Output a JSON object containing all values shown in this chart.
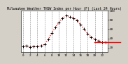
{
  "title": "Milwaukee Weather THSW Index per Hour (F) (Last 24 Hours)",
  "background_color": "#d4d0c8",
  "plot_bg_color": "#ffffff",
  "grid_color": "#888888",
  "line_color": "#ff0000",
  "marker_color": "#000000",
  "x_values": [
    0,
    1,
    2,
    3,
    4,
    5,
    6,
    7,
    8,
    9,
    10,
    11,
    12,
    13,
    14,
    15,
    16,
    17,
    18,
    19,
    20,
    21,
    22,
    23
  ],
  "y_values": [
    22,
    24,
    21,
    23,
    22,
    24,
    27,
    37,
    51,
    64,
    74,
    84,
    89,
    87,
    84,
    79,
    70,
    60,
    50,
    43,
    38,
    34,
    32,
    31
  ],
  "ylim": [
    10,
    100
  ],
  "xlim": [
    -0.5,
    23.5
  ],
  "yticks": [
    20,
    40,
    60,
    80,
    100
  ],
  "ytick_labels": [
    "20",
    "40",
    "60",
    "80",
    "100"
  ],
  "xtick_positions": [
    0,
    2,
    4,
    6,
    8,
    10,
    12,
    14,
    16,
    18,
    20,
    22
  ],
  "vgrid_positions": [
    0,
    2,
    4,
    6,
    8,
    10,
    12,
    14,
    16,
    18,
    20,
    22
  ],
  "current_value": 31,
  "title_fontsize": 3.5,
  "tick_fontsize": 3.2
}
